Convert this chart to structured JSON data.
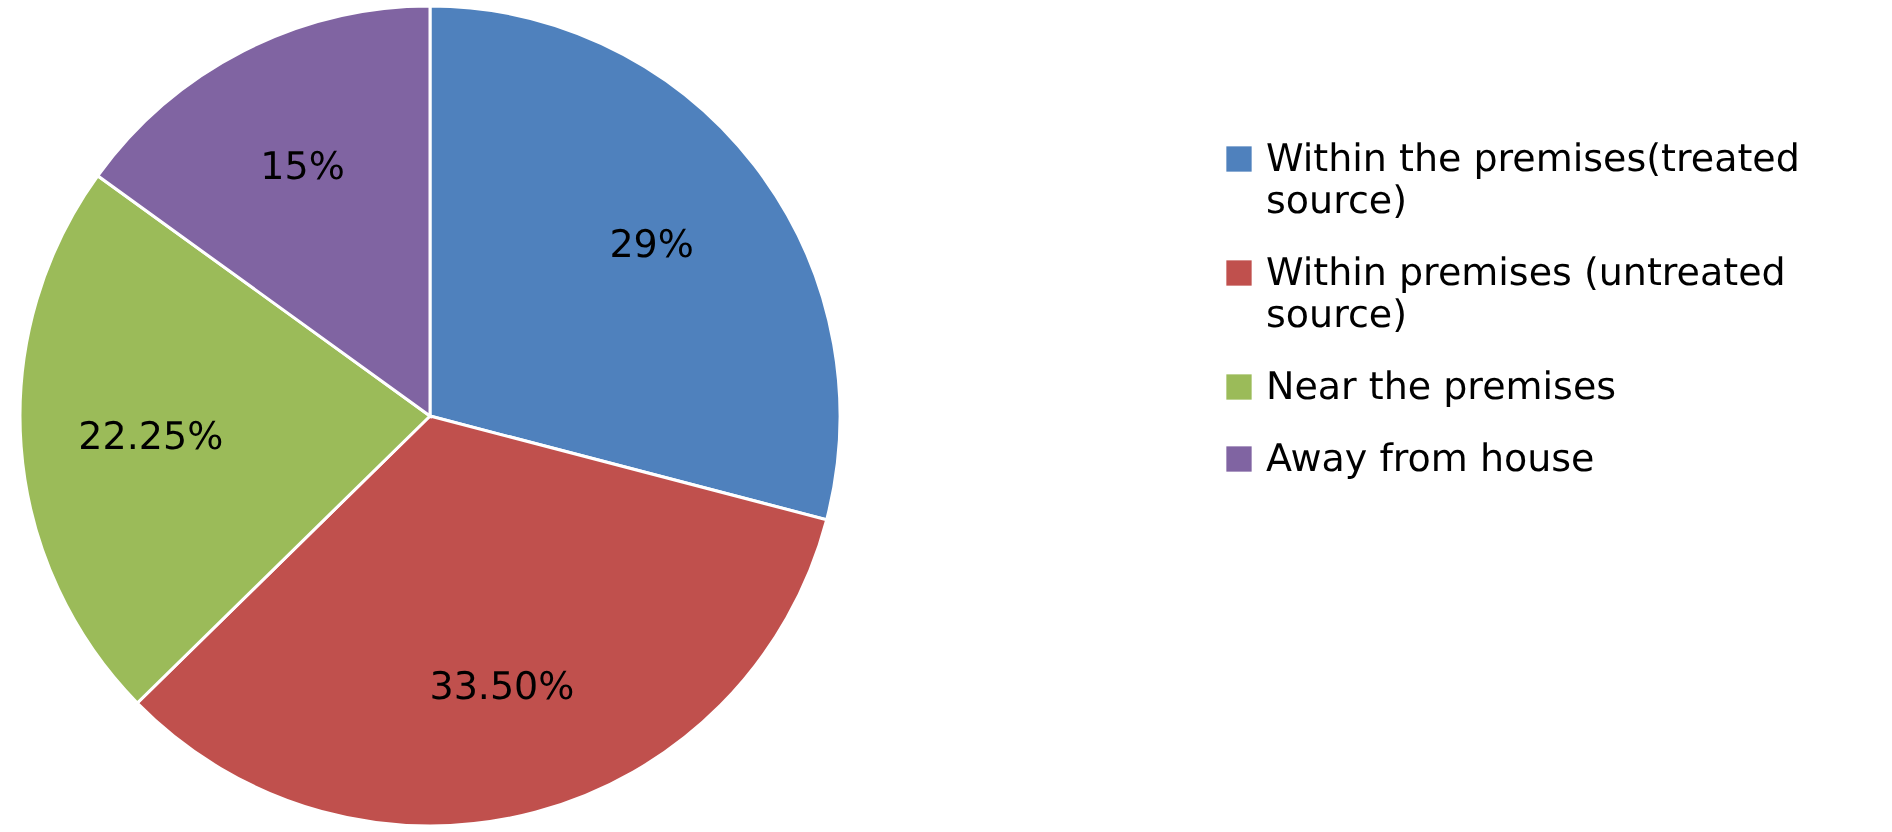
{
  "chart_data": {
    "type": "pie",
    "categories": [
      "Within the premises(treated source)",
      "Within premises (untreated source)",
      "Near the premises",
      "Away from house"
    ],
    "values": [
      29,
      33.5,
      22.25,
      15
    ],
    "colors": [
      "#4f81bd",
      "#c0504d",
      "#9bbb59",
      "#8064a2"
    ],
    "value_labels": [
      "29%",
      "33.50%",
      "22.25%",
      "15%"
    ],
    "legend": "right"
  }
}
